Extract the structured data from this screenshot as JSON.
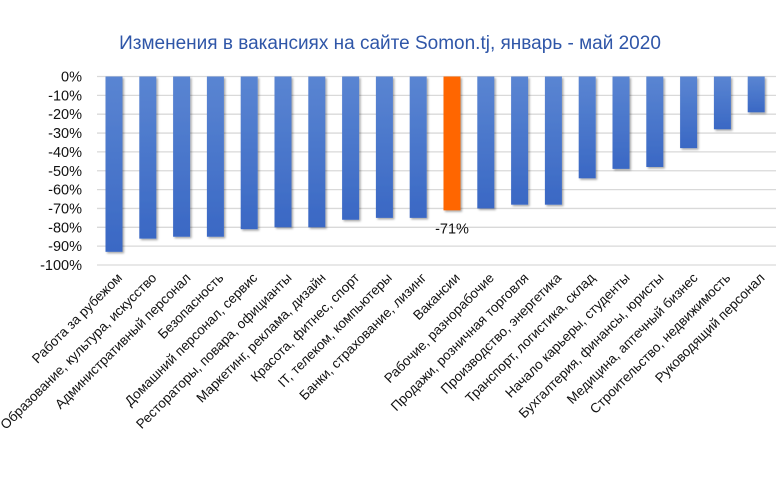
{
  "chart_data": {
    "type": "bar",
    "title": "Изменения в вакансиях на сайте Somon.tj, январь - май 2020",
    "xlabel": "",
    "ylabel": "",
    "ylim": [
      -100,
      0
    ],
    "yticks": [
      "0%",
      "-10%",
      "-20%",
      "-30%",
      "-40%",
      "-50%",
      "-60%",
      "-70%",
      "-80%",
      "-90%",
      "-100%"
    ],
    "grid": true,
    "categories": [
      "Работа за рубежом",
      "Образование, культура, искусство",
      "Административный персонал",
      "Безопасность",
      "Домашний персонал, сервис",
      "Рестораторы, повара, официанты",
      "Маркетинг, реклама, дизайн",
      "Красота, фитнес, спорт",
      "IT, телеком, компьютеры",
      "Банки, страхование, лизинг",
      "Вакансии",
      "Рабочие, разнорабочие",
      "Продажи, розничная торговля",
      "Производство, энергетика",
      "Транспорт, логистика, склад",
      "Начало карьеры, студенты",
      "Бухгалтерия, финансы, юристы",
      "Медицина, аптечный бизнес",
      "Строительство, недвижимость",
      "Руководящий персонал"
    ],
    "values": [
      -93,
      -86,
      -85,
      -85,
      -81,
      -80,
      -80,
      -76,
      -75,
      -75,
      -71,
      -70,
      -68,
      -68,
      -54,
      -49,
      -48,
      -38,
      -28,
      -19
    ],
    "highlight_index": 10,
    "data_labels": [
      {
        "index": 10,
        "text": "-71%"
      }
    ],
    "colors": {
      "bar": "#3a68c4",
      "bar_top": "#5a85d2",
      "highlight": "#ff6600",
      "grid": "#d9d9d9",
      "title": "#2f56a8"
    }
  }
}
